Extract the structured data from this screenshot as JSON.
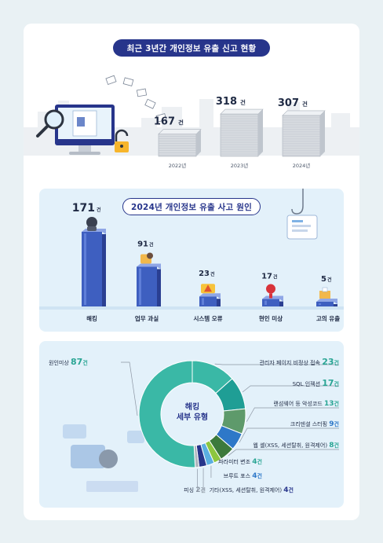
{
  "sections": {
    "trend_title": "최근 3년간 개인정보 유출 신고 현황",
    "causes_title": "2024년 개인정보 유출 사고 원인",
    "hacking_center": [
      "해킹",
      "세부 유형"
    ]
  },
  "colors": {
    "navy": "#27358b",
    "teal": "#3ab8a6",
    "green": "#8dc63f",
    "blue": "#2e78c8",
    "panel": "#e3f1fa"
  },
  "chart_data": [
    {
      "type": "bar",
      "title": "최근 3년간 개인정보 유출 신고 현황",
      "unit": "건",
      "categories": [
        "2022년",
        "2023년",
        "2024년"
      ],
      "values": [
        167,
        318,
        307
      ],
      "value_labels": [
        "167",
        "318",
        "307"
      ]
    },
    {
      "type": "bar",
      "title": "2024년 개인정보 유출 사고 원인",
      "unit": "건",
      "categories": [
        "해킹",
        "업무 과실",
        "시스템 오류",
        "현인 미상",
        "고의 유출"
      ],
      "values": [
        171,
        91,
        23,
        17,
        5
      ],
      "value_labels": [
        "171",
        "91",
        "23",
        "17",
        "5"
      ]
    },
    {
      "type": "pie",
      "title": "해킹 세부 유형",
      "unit": "건",
      "slices": [
        {
          "label": "관리자 페이지 비정상 접속",
          "value": 23,
          "value_label": "23",
          "color": "#3ab8a6"
        },
        {
          "label": "SQL 인젝션",
          "value": 17,
          "value_label": "17",
          "color": "#1f9e95"
        },
        {
          "label": "랜섬웨어 등 악성코드",
          "value": 13,
          "value_label": "13",
          "color": "#5e9a6b"
        },
        {
          "label": "크리덴셜 스터핑",
          "value": 9,
          "value_label": "9",
          "color": "#2e78c8"
        },
        {
          "label": "웹 셸(XSS, 세션탈취, 원격제어)",
          "value": 8,
          "value_label": "8",
          "color": "#3c7a3c"
        },
        {
          "label": "파라미터 변조",
          "value": 4,
          "value_label": "4",
          "color": "#8dc63f"
        },
        {
          "label": "브루트 포스",
          "value": 4,
          "value_label": "4",
          "color": "#5aaee0"
        },
        {
          "label": "기타(XSS, 세션탈취, 원격제어)",
          "value": 4,
          "value_label": "4",
          "color": "#27358b"
        },
        {
          "label": "피싱",
          "value": 2,
          "value_label": "2",
          "color": "#b0b6be"
        },
        {
          "label": "원인미상",
          "value": 87,
          "value_label": "87",
          "color": "#3ab8a6"
        }
      ]
    }
  ]
}
